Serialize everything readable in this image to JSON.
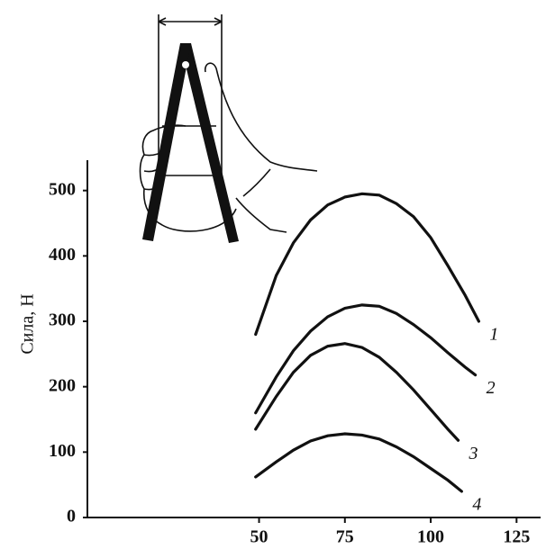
{
  "chart_data": {
    "type": "line",
    "y_label": "Сила, Н",
    "xlim": [
      0,
      132
    ],
    "ylim": [
      0,
      545
    ],
    "xticks": [
      50,
      75,
      100,
      125
    ],
    "yticks": [
      0,
      100,
      200,
      300,
      400,
      500
    ],
    "series": [
      {
        "name": "1",
        "color": "#111111",
        "x": [
          49,
          55,
          60,
          65,
          70,
          75,
          80,
          85,
          90,
          95,
          100,
          105,
          110,
          114
        ],
        "values": [
          280,
          370,
          420,
          455,
          478,
          490,
          495,
          493,
          480,
          460,
          428,
          385,
          340,
          300
        ]
      },
      {
        "name": "2",
        "color": "#111111",
        "x": [
          49,
          55,
          60,
          65,
          70,
          75,
          80,
          85,
          90,
          95,
          100,
          105,
          110,
          113
        ],
        "values": [
          160,
          215,
          255,
          285,
          307,
          320,
          325,
          323,
          312,
          295,
          275,
          252,
          230,
          218
        ]
      },
      {
        "name": "3",
        "color": "#111111",
        "x": [
          49,
          55,
          60,
          65,
          70,
          75,
          80,
          85,
          90,
          95,
          100,
          105,
          108
        ],
        "values": [
          135,
          185,
          222,
          248,
          262,
          266,
          260,
          245,
          222,
          195,
          165,
          135,
          118
        ]
      },
      {
        "name": "4",
        "color": "#111111",
        "x": [
          49,
          55,
          60,
          65,
          70,
          75,
          80,
          85,
          90,
          95,
          100,
          105,
          109
        ],
        "values": [
          62,
          85,
          103,
          117,
          125,
          128,
          126,
          120,
          108,
          93,
          75,
          57,
          40
        ]
      }
    ]
  }
}
